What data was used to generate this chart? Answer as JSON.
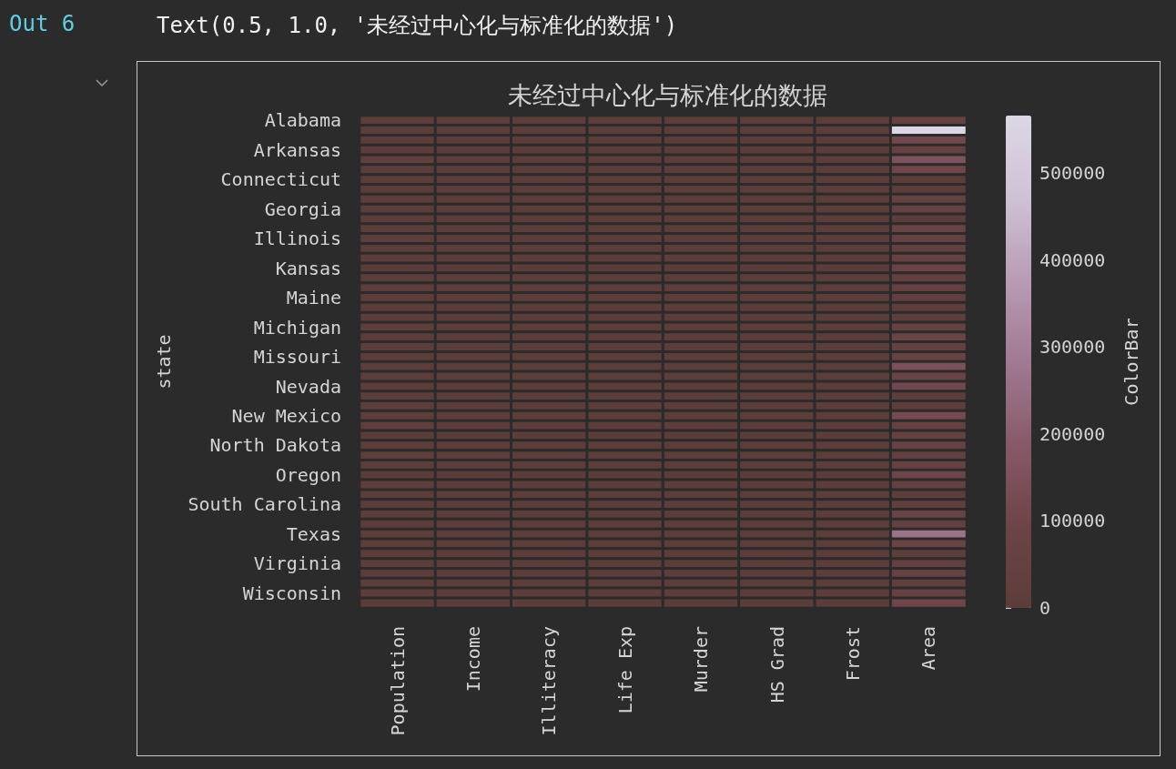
{
  "chart_data": {
    "type": "heatmap",
    "title": "未经过中心化与标准化的数据",
    "ylabel": "state",
    "clabel": "ColorBar",
    "annotations": [
      "Out 6",
      "Text(0.5, 1.0, '未经过中心化与标准化的数据')"
    ],
    "categories": [
      "Population",
      "Income",
      "Illiteracy",
      "Life Exp",
      "Murder",
      "HS Grad",
      "Frost",
      "Area"
    ],
    "y_categories": [
      "Alabama",
      null,
      null,
      "Arkansas",
      null,
      null,
      "Connecticut",
      null,
      null,
      "Georgia",
      null,
      null,
      "Illinois",
      null,
      null,
      "Kansas",
      null,
      null,
      "Maine",
      null,
      null,
      "Michigan",
      null,
      null,
      "Missouri",
      null,
      null,
      "Nevada",
      null,
      null,
      "New Mexico",
      null,
      null,
      "North Dakota",
      null,
      null,
      "Oregon",
      null,
      null,
      "South Carolina",
      null,
      null,
      "Texas",
      null,
      null,
      "Virginia",
      null,
      null,
      "Wisconsin",
      null
    ],
    "cells": [
      [
        3600,
        3600,
        2,
        69,
        15,
        41,
        20,
        51000
      ],
      [
        400,
        6300,
        2,
        69,
        11,
        67,
        152,
        566000
      ],
      [
        2200,
        4500,
        2,
        71,
        8,
        58,
        15,
        113000
      ],
      [
        2100,
        3400,
        2,
        71,
        10,
        40,
        65,
        52000
      ],
      [
        21200,
        5100,
        1,
        72,
        10,
        63,
        20,
        156000
      ],
      [
        2500,
        4900,
        1,
        72,
        7,
        64,
        166,
        104000
      ],
      [
        3100,
        5300,
        1,
        72,
        3,
        56,
        139,
        5000
      ],
      [
        600,
        4800,
        1,
        70,
        6,
        55,
        103,
        2000
      ],
      [
        8300,
        4800,
        1,
        71,
        11,
        53,
        11,
        54000
      ],
      [
        4900,
        4100,
        2,
        69,
        14,
        41,
        60,
        58000
      ],
      [
        900,
        5000,
        2,
        74,
        6,
        62,
        0,
        6000
      ],
      [
        800,
        4100,
        1,
        72,
        5,
        60,
        126,
        83000
      ],
      [
        11200,
        5100,
        1,
        70,
        10,
        53,
        127,
        56000
      ],
      [
        5300,
        4500,
        1,
        71,
        7,
        53,
        122,
        36000
      ],
      [
        2900,
        4600,
        1,
        73,
        2,
        59,
        140,
        56000
      ],
      [
        2300,
        4700,
        1,
        73,
        5,
        60,
        114,
        82000
      ],
      [
        3400,
        3700,
        2,
        70,
        11,
        39,
        95,
        40000
      ],
      [
        3800,
        3500,
        3,
        69,
        13,
        42,
        12,
        45000
      ],
      [
        1100,
        3700,
        1,
        70,
        3,
        55,
        161,
        31000
      ],
      [
        4100,
        5300,
        1,
        70,
        9,
        52,
        101,
        10000
      ],
      [
        5800,
        4800,
        1,
        72,
        3,
        59,
        103,
        8000
      ],
      [
        9100,
        4800,
        1,
        71,
        11,
        53,
        125,
        57000
      ],
      [
        3900,
        4700,
        1,
        73,
        2,
        58,
        160,
        79000
      ],
      [
        2300,
        3100,
        2,
        68,
        13,
        41,
        50,
        47000
      ],
      [
        4800,
        4300,
        1,
        71,
        9,
        49,
        108,
        69000
      ],
      [
        700,
        4300,
        1,
        71,
        5,
        59,
        155,
        146000
      ],
      [
        1500,
        4500,
        1,
        73,
        3,
        59,
        139,
        76000
      ],
      [
        600,
        5100,
        1,
        69,
        12,
        65,
        188,
        110000
      ],
      [
        800,
        4300,
        1,
        71,
        3,
        58,
        174,
        9000
      ],
      [
        7300,
        5200,
        1,
        71,
        5,
        53,
        115,
        8000
      ],
      [
        1100,
        3600,
        2,
        70,
        10,
        55,
        120,
        121000
      ],
      [
        18100,
        4900,
        1,
        71,
        11,
        53,
        82,
        48000
      ],
      [
        5400,
        3900,
        2,
        69,
        11,
        39,
        80,
        49000
      ],
      [
        600,
        5100,
        1,
        73,
        1,
        50,
        186,
        69000
      ],
      [
        10700,
        4600,
        1,
        71,
        7,
        53,
        124,
        41000
      ],
      [
        2700,
        4000,
        1,
        71,
        6,
        52,
        82,
        69000
      ],
      [
        2300,
        4700,
        1,
        72,
        4,
        60,
        44,
        96000
      ],
      [
        11900,
        4400,
        1,
        70,
        6,
        50,
        126,
        45000
      ],
      [
        900,
        4600,
        1,
        72,
        2,
        46,
        127,
        1000
      ],
      [
        2800,
        3600,
        2,
        68,
        12,
        38,
        65,
        30000
      ],
      [
        700,
        4200,
        1,
        72,
        2,
        53,
        172,
        76000
      ],
      [
        4200,
        3800,
        2,
        70,
        11,
        42,
        70,
        41000
      ],
      [
        12200,
        4200,
        2,
        71,
        12,
        47,
        35,
        262000
      ],
      [
        1200,
        4000,
        1,
        73,
        5,
        67,
        137,
        82000
      ],
      [
        500,
        3900,
        1,
        72,
        6,
        57,
        168,
        9000
      ],
      [
        5000,
        4700,
        1,
        70,
        10,
        48,
        85,
        40000
      ],
      [
        3600,
        4900,
        1,
        72,
        4,
        64,
        32,
        67000
      ],
      [
        1800,
        3600,
        1,
        69,
        7,
        42,
        100,
        24000
      ],
      [
        4600,
        4500,
        1,
        70,
        3,
        55,
        149,
        54000
      ],
      [
        400,
        4600,
        1,
        70,
        7,
        63,
        173,
        97000
      ]
    ],
    "clim": [
      0,
      566000
    ],
    "cticks": [
      0,
      100000,
      200000,
      300000,
      400000,
      500000
    ]
  }
}
